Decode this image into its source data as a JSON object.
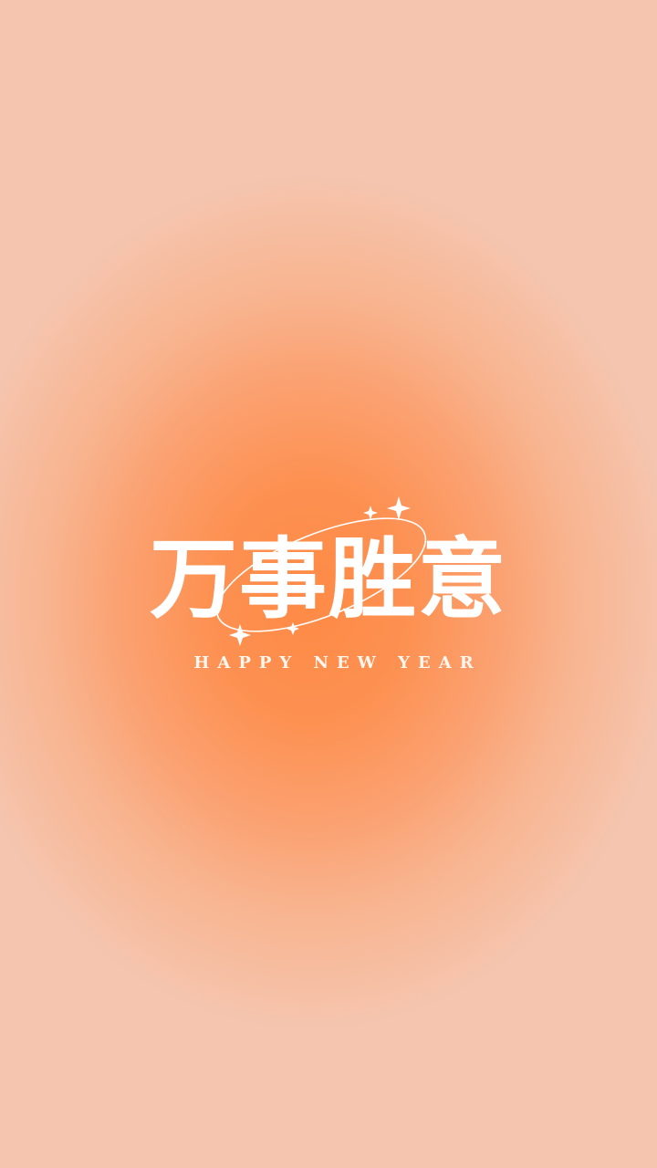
{
  "background": {
    "center_color": "#fe8a45",
    "edge_color": "#f5c5af"
  },
  "greeting": {
    "chinese": "万事胜意",
    "english": "HAPPY NEW YEAR",
    "text_color": "#ffffff"
  },
  "decorations": {
    "orbit": "ellipse-ring",
    "sparkles": [
      "sparkle-icon",
      "sparkle-icon",
      "sparkle-icon",
      "sparkle-icon"
    ]
  }
}
